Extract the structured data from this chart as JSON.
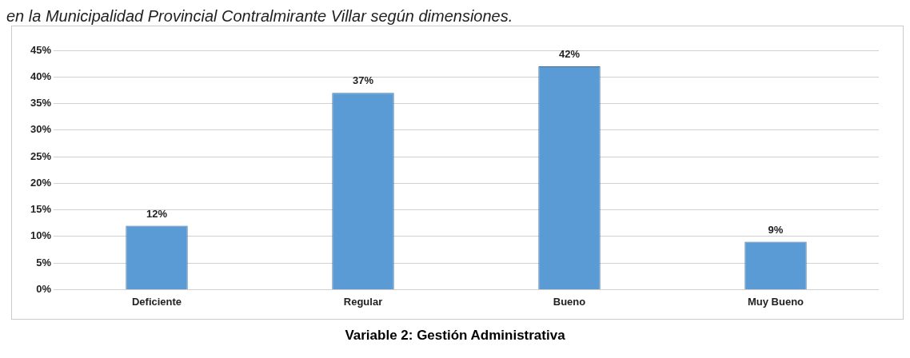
{
  "chart_data": {
    "type": "bar",
    "title": "en la Municipalidad Provincial Contralmirante Villar según dimensiones.",
    "annotations": [
      "Variable 2: Gestión Administrativa"
    ],
    "categories": [
      "Deficiente",
      "Regular",
      "Bueno",
      "Muy Bueno"
    ],
    "values": [
      12,
      37,
      42,
      9
    ],
    "color": "#5b9bd5",
    "value_labels": [
      "12%",
      "37%",
      "42%",
      "9%"
    ],
    "ylim": [
      0,
      45
    ],
    "yticks": [
      {
        "value": 0,
        "label": "0%"
      },
      {
        "value": 5,
        "label": "5%"
      },
      {
        "value": 10,
        "label": "10%"
      },
      {
        "value": 15,
        "label": "15%"
      },
      {
        "value": 20,
        "label": "20%"
      },
      {
        "value": 25,
        "label": "25%"
      },
      {
        "value": 30,
        "label": "30%"
      },
      {
        "value": 35,
        "label": "35%"
      },
      {
        "value": 40,
        "label": "40%"
      },
      {
        "value": 45,
        "label": "45%"
      }
    ],
    "grid": "y",
    "legend": false
  }
}
